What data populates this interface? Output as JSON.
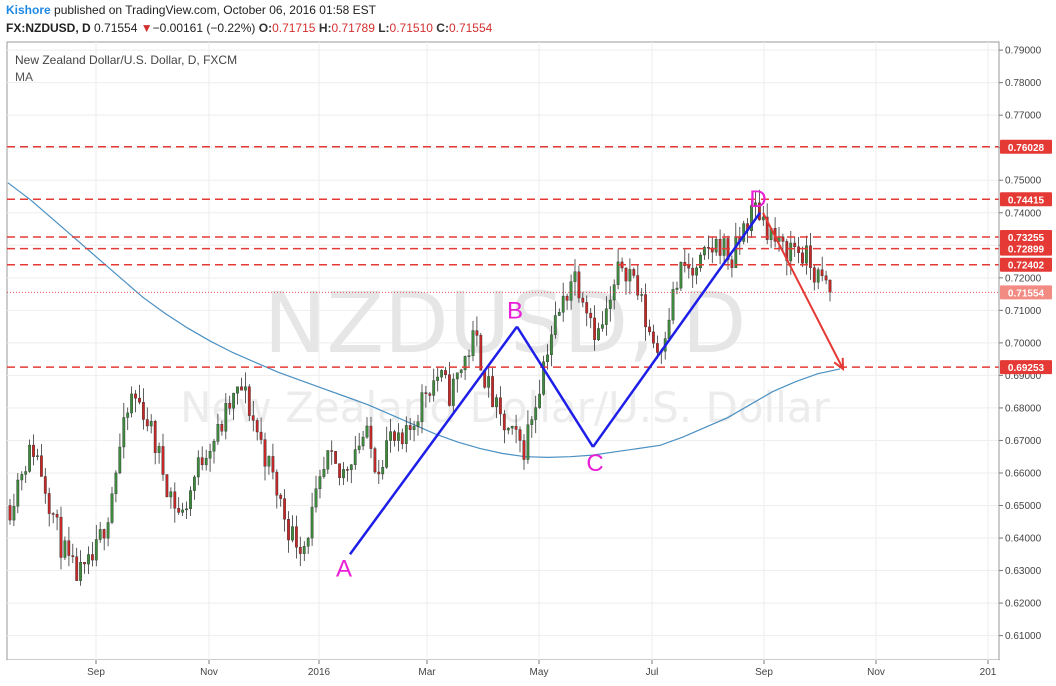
{
  "header": {
    "author": "Kishore",
    "published_text": " published on TradingView.com, October 06, 2016 01:58 EST",
    "symbol": "FX:NZDUSD, D",
    "last": "0.71554",
    "change": "−0.00161 (−0.22%)",
    "o_label": "O:",
    "o_value": "0.71715",
    "h_label": "H:",
    "h_value": "0.71789",
    "l_label": "L:",
    "l_value": "0.71510",
    "c_label": "C:",
    "c_value": "0.71554"
  },
  "legend": {
    "title": "New Zealand Dollar/U.S. Dollar, D, FXCM",
    "indicator": "MA"
  },
  "watermark": {
    "symbol": "NZDUSD, D",
    "name": "New Zealand Dollar/U.S. Dollar"
  },
  "colors": {
    "bull": "#3d8b3d",
    "bear": "#c62828",
    "ma": "#4a90c2",
    "level": "#e53935",
    "pattern": "#1e1ee8",
    "arrow": "#e53935",
    "pointLabel": "#e91ed6"
  },
  "chart_data": {
    "type": "candlestick",
    "x_ticks": [
      "Sep",
      "Nov",
      "2016",
      "Mar",
      "May",
      "Jul",
      "Sep",
      "Nov",
      "201"
    ],
    "y_ticks": [
      "0.79000",
      "0.78000",
      "0.77000",
      "0.76000",
      "0.75000",
      "0.74000",
      "0.73000",
      "0.72000",
      "0.71000",
      "0.70000",
      "0.69000",
      "0.68000",
      "0.67000",
      "0.66000",
      "0.65000",
      "0.64000",
      "0.63000",
      "0.62000",
      "0.61000"
    ],
    "ylim": [
      0.6025,
      0.7925
    ],
    "levels": [
      {
        "value": 0.76028,
        "label": "0.76028"
      },
      {
        "value": 0.74415,
        "label": "0.74415"
      },
      {
        "value": 0.73255,
        "label": "0.73255"
      },
      {
        "value": 0.72899,
        "label": "0.72899"
      },
      {
        "value": 0.72402,
        "label": "0.72402"
      },
      {
        "value": 0.69253,
        "label": "0.69253"
      }
    ],
    "last_price": {
      "value": 0.71554,
      "label": "0.71554"
    },
    "pattern_points": [
      {
        "label": "A",
        "value": 0.635
      },
      {
        "label": "B",
        "value": 0.705
      },
      {
        "label": "C",
        "value": 0.668
      },
      {
        "label": "D",
        "value": 0.74
      }
    ],
    "projection": {
      "from": 0.74,
      "to": 0.692
    },
    "ma_path": [
      0.7492,
      0.744,
      0.738,
      0.732,
      0.726,
      0.72,
      0.714,
      0.709,
      0.7045,
      0.7005,
      0.697,
      0.694,
      0.691,
      0.6885,
      0.686,
      0.6835,
      0.681,
      0.678,
      0.675,
      0.672,
      0.6695,
      0.6675,
      0.666,
      0.665,
      0.6648,
      0.665,
      0.6655,
      0.6665,
      0.6675,
      0.6685,
      0.671,
      0.674,
      0.677,
      0.681,
      0.685,
      0.688,
      0.6905,
      0.692
    ],
    "close_path": [
      0.65,
      0.662,
      0.668,
      0.655,
      0.64,
      0.63,
      0.628,
      0.635,
      0.648,
      0.668,
      0.684,
      0.679,
      0.667,
      0.655,
      0.646,
      0.658,
      0.668,
      0.672,
      0.681,
      0.686,
      0.675,
      0.664,
      0.652,
      0.641,
      0.638,
      0.651,
      0.664,
      0.658,
      0.667,
      0.672,
      0.662,
      0.671,
      0.667,
      0.676,
      0.686,
      0.69,
      0.684,
      0.694,
      0.702,
      0.687,
      0.676,
      0.671,
      0.668,
      0.683,
      0.701,
      0.71,
      0.722,
      0.714,
      0.702,
      0.711,
      0.725,
      0.72,
      0.706,
      0.697,
      0.712,
      0.724,
      0.72,
      0.728,
      0.731,
      0.725,
      0.736,
      0.742,
      0.735,
      0.728,
      0.73,
      0.726,
      0.72,
      0.7155
    ]
  }
}
